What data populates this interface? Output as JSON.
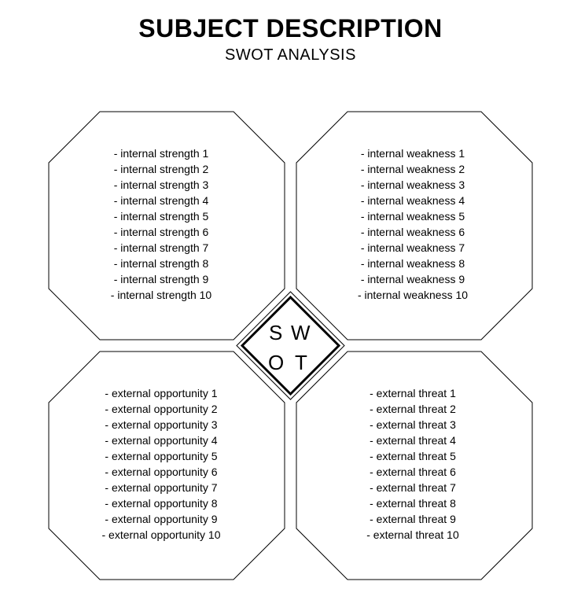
{
  "header": {
    "title": "SUBJECT DESCRIPTION",
    "subtitle": "SWOT ANALYSIS"
  },
  "swot": {
    "type": "infographic",
    "background_color": "#ffffff",
    "stroke_color": "#000000",
    "octagon_stroke_width": 1,
    "diamond_outer_stroke_width": 1,
    "diamond_inner_stroke_width": 3,
    "list_fontsize": 14,
    "letter_fontsize": 26,
    "letters": {
      "s": "S",
      "w": "W",
      "o": "O",
      "t": "T"
    },
    "quadrants": {
      "strengths": {
        "items": [
          "internal strength 1",
          "internal strength 2",
          "internal strength 3",
          "internal strength 4",
          "internal strength 5",
          "internal strength 6",
          "internal strength 7",
          "internal strength 8",
          "internal strength 9",
          "internal strength 10"
        ]
      },
      "weaknesses": {
        "items": [
          "internal weakness 1",
          "internal weakness 2",
          "internal weakness 3",
          "internal weakness 4",
          "internal weakness 5",
          "internal weakness 6",
          "internal weakness 7",
          "internal weakness 8",
          "internal weakness 9",
          "internal weakness 10"
        ]
      },
      "opportunities": {
        "items": [
          "external opportunity 1",
          "external opportunity 2",
          "external opportunity 3",
          "external opportunity 4",
          "external opportunity 5",
          "external opportunity 6",
          "external opportunity 7",
          "external opportunity 8",
          "external opportunity 9",
          "external opportunity 10"
        ]
      },
      "threats": {
        "items": [
          "external threat 1",
          "external threat 2",
          "external threat 3",
          "external threat 4",
          "external threat 5",
          "external threat 6",
          "external threat 7",
          "external threat 8",
          "external threat 9",
          "external threat 10"
        ]
      }
    }
  }
}
